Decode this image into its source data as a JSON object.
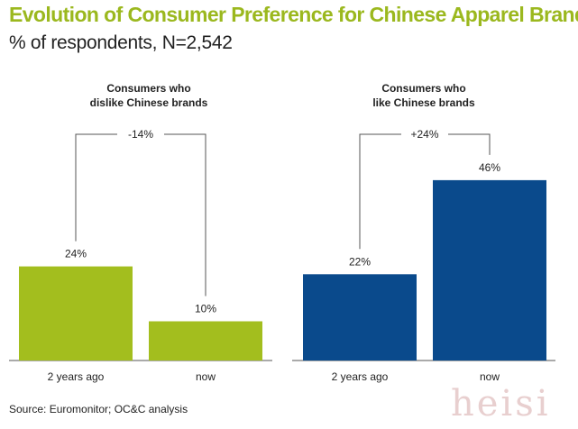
{
  "title": "Evolution of Consumer Preference for Chinese Apparel Brands",
  "subtitle": "% of respondents, N=2,542",
  "source": "Source: Euromonitor; OC&C analysis",
  "watermark": "heisi",
  "colors": {
    "green": "#a3be1e",
    "blue": "#0a4a8c",
    "title": "#9bb81e"
  },
  "chart_data": [
    {
      "type": "bar",
      "title": "Consumers who\ndislike Chinese brands",
      "title_lines": [
        "Consumers who",
        "dislike Chinese brands"
      ],
      "categories": [
        "2 years ago",
        "now"
      ],
      "values": [
        24,
        10
      ],
      "value_labels": [
        "24%",
        "10%"
      ],
      "change_label": "-14%",
      "color": "#a3be1e",
      "ylim": [
        0,
        50
      ]
    },
    {
      "type": "bar",
      "title": "Consumers who\nlike Chinese brands",
      "title_lines": [
        "Consumers who",
        "like Chinese brands"
      ],
      "categories": [
        "2 years ago",
        "now"
      ],
      "values": [
        22,
        46
      ],
      "value_labels": [
        "22%",
        "46%"
      ],
      "change_label": "+24%",
      "color": "#0a4a8c",
      "ylim": [
        0,
        50
      ]
    }
  ]
}
